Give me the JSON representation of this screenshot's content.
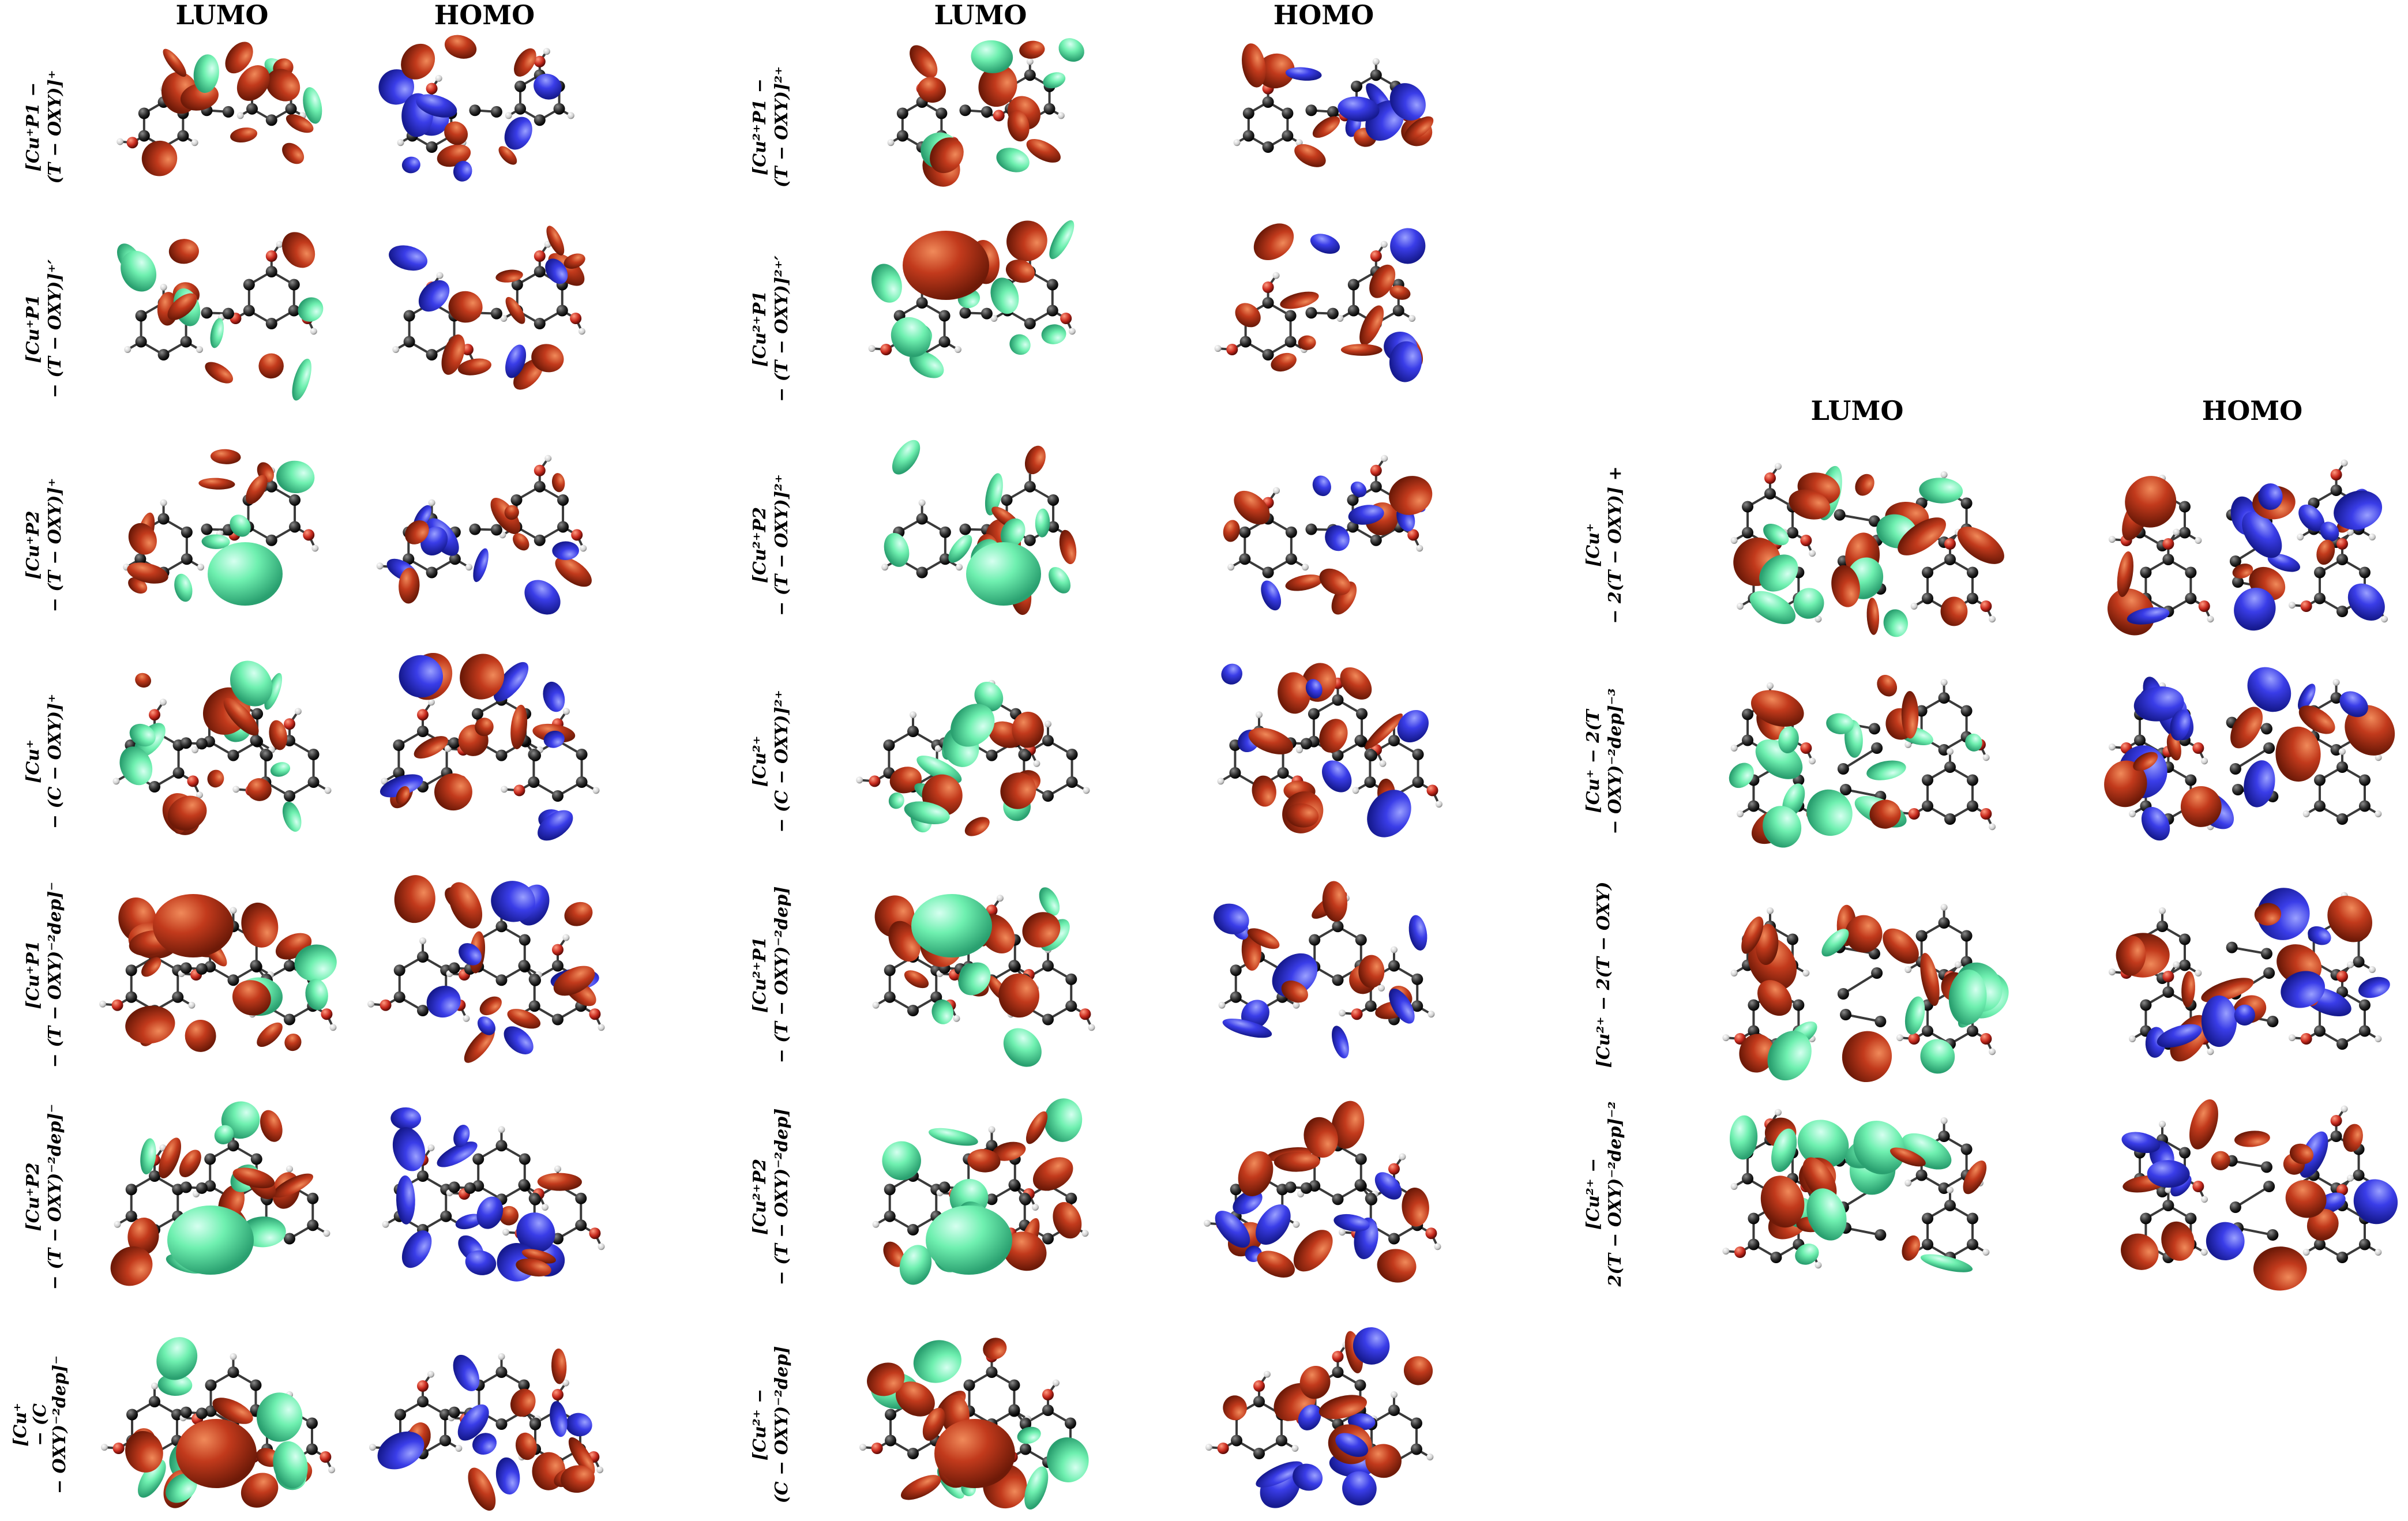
{
  "headers": {
    "set1": [
      "LUMO",
      "HOMO"
    ],
    "set2": [
      "LUMO",
      "HOMO"
    ],
    "set3": [
      "LUMO",
      "HOMO"
    ]
  },
  "rows": {
    "set1": [
      [
        "[Cu⁺P1 −",
        "(T − OXY)]⁺"
      ],
      [
        "[Cu⁺P1",
        "− (T − OXY)]⁺′"
      ],
      [
        "[Cu⁺P2",
        "− (T − OXY)]⁺"
      ],
      [
        "[Cu⁺",
        "− (C − OXY)]⁺"
      ],
      [
        "[Cu⁺P1",
        "− (T − OXY)⁻²dep]⁻"
      ],
      [
        "[Cu⁺P2",
        "− (T − OXY)⁻²dep]⁻"
      ],
      [
        "[Cu⁺",
        "− (C",
        "− OXY)⁻²dep]⁻"
      ]
    ],
    "set2": [
      [
        "[Cu²⁺P1 −",
        "(T − OXY)]²⁺"
      ],
      [
        "[Cu²⁺P1",
        "− (T − OXY)]²⁺′"
      ],
      [
        "[Cu²⁺P2",
        "− (T − OXY)]²⁺"
      ],
      [
        "[Cu²⁺",
        "− (C − OXY)]²⁺"
      ],
      [
        "[Cu²⁺P1",
        "− (T − OXY)⁻²dep]"
      ],
      [
        "[Cu²⁺P2",
        "− (T − OXY)⁻²dep]"
      ],
      [
        "[Cu²⁺ −",
        "(C − OXY)⁻²dep]"
      ]
    ],
    "set3": [
      [
        "[Cu⁺",
        "− 2(T − OXY)] +"
      ],
      [
        "[Cu⁺ − 2(T",
        "− OXY)⁻²dep]⁻³"
      ],
      [
        "[Cu²⁺ − 2(T − OXY)"
      ],
      [
        "[Cu²⁺ −",
        "2(T − OXY)⁻²dep]⁻²"
      ]
    ]
  },
  "colors": {
    "lumo_positive": "#c23a1c",
    "lumo_negative": "#6ff0b0",
    "homo_positive": "#c23a1c",
    "homo_negative": "#3a3de8",
    "carbon": "#2a2a2a",
    "oxygen": "#c82a1e",
    "hydrogen": "#e8e8e8"
  }
}
